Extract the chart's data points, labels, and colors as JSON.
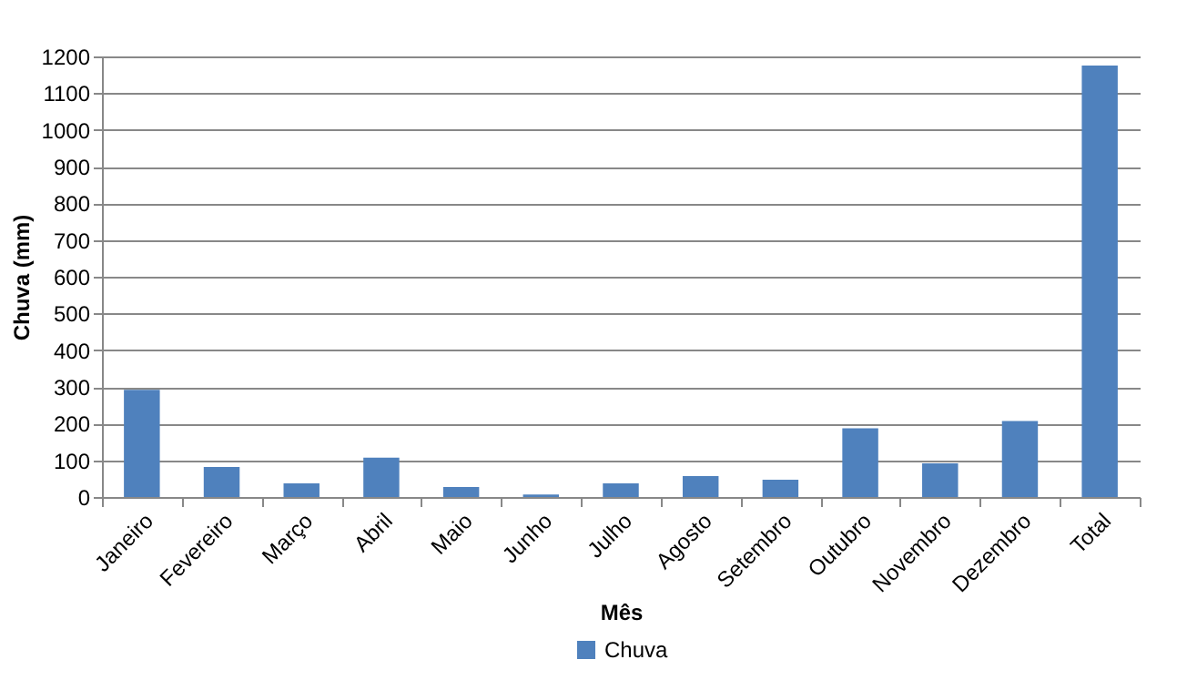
{
  "chart_data": {
    "type": "bar",
    "xlabel": "Mês",
    "ylabel": "Chuva (mm)",
    "categories": [
      "Janeiro",
      "Fevereiro",
      "Março",
      "Abril",
      "Maio",
      "Junho",
      "Julho",
      "Agosto",
      "Setembro",
      "Outubro",
      "Novembro",
      "Dezembro",
      "Total"
    ],
    "series": [
      {
        "name": "Chuva",
        "color": "#4f81bd",
        "values": [
          292,
          82,
          37,
          107,
          27,
          7,
          37,
          57,
          47,
          187,
          92,
          207,
          1175
        ]
      }
    ],
    "ylim": [
      0,
      1200
    ],
    "yticks": [
      0,
      100,
      200,
      300,
      400,
      500,
      600,
      700,
      800,
      900,
      1000,
      1100,
      1200
    ],
    "grid": "y",
    "legend": "bottom"
  }
}
